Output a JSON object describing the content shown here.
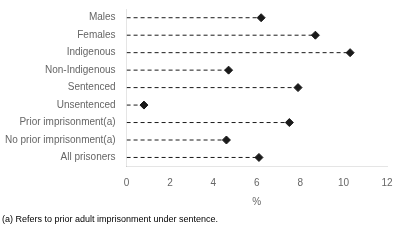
{
  "chart_data": {
    "type": "lollipop",
    "orientation": "horizontal",
    "categories": [
      "Males",
      "Females",
      "Indigenous",
      "Non-Indigenous",
      "Sentenced",
      "Unsentenced",
      "Prior imprisonment(a)",
      "No prior imprisonment(a)",
      "All prisoners"
    ],
    "values": [
      6.2,
      8.7,
      10.3,
      4.7,
      7.9,
      0.8,
      7.5,
      4.6,
      6.1
    ],
    "xlim": [
      0,
      12
    ],
    "xticks": [
      0,
      2,
      4,
      6,
      8,
      10,
      12
    ],
    "xlabel": "%",
    "footnote": "(a) Refers to prior adult imprisonment under sentence.",
    "color": "#1a1a1a",
    "marker": "diamond",
    "line_style": "dashed",
    "grid": false
  }
}
